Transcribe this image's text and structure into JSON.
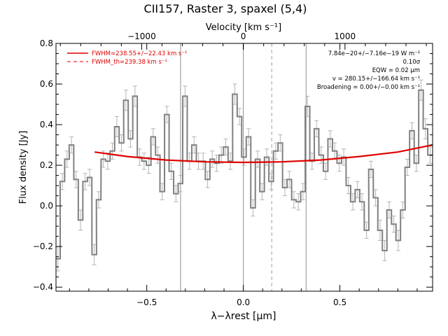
{
  "chart_data": {
    "type": "line",
    "title": "CII157, Raster 3, spaxel (5,4)",
    "xlabel": "λ−λrest [μm]",
    "ylabel": "Flux density [Jy]",
    "top_xlabel": "Velocity [km s⁻¹]",
    "xlim": [
      -0.97,
      0.98
    ],
    "ylim": [
      -0.42,
      0.8
    ],
    "x_ticks": [
      -0.5,
      0.0,
      0.5
    ],
    "x_tick_labels": [
      "−0.5",
      "0.0",
      "0.5"
    ],
    "y_ticks": [
      -0.4,
      -0.2,
      0.0,
      0.2,
      0.4,
      0.6,
      0.8
    ],
    "y_tick_labels": [
      "−0.4",
      "−0.2",
      "0.0",
      "0.2",
      "0.4",
      "0.6",
      "0.8"
    ],
    "top_ticks_km_s": [
      -1000,
      0,
      1000
    ],
    "top_tick_labels": [
      "−1000",
      "0",
      "1000"
    ],
    "km_s_per_um": 1900,
    "vlines_solid": [
      -0.325,
      0.0,
      0.325
    ],
    "vline_dashed": 0.147,
    "spectrum": {
      "name": "data",
      "color": "#808080",
      "step": 0.0235,
      "x": [
        -0.96,
        -0.937,
        -0.913,
        -0.89,
        -0.866,
        -0.843,
        -0.819,
        -0.796,
        -0.772,
        -0.749,
        -0.725,
        -0.702,
        -0.678,
        -0.655,
        -0.631,
        -0.608,
        -0.584,
        -0.561,
        -0.537,
        -0.514,
        -0.49,
        -0.467,
        -0.443,
        -0.42,
        -0.396,
        -0.373,
        -0.349,
        -0.326,
        -0.302,
        -0.279,
        -0.255,
        -0.232,
        -0.208,
        -0.185,
        -0.161,
        -0.138,
        -0.114,
        -0.091,
        -0.067,
        -0.044,
        -0.02,
        0.003,
        0.027,
        0.05,
        0.074,
        0.097,
        0.121,
        0.144,
        0.168,
        0.191,
        0.215,
        0.238,
        0.262,
        0.285,
        0.309,
        0.332,
        0.356,
        0.379,
        0.403,
        0.426,
        0.45,
        0.473,
        0.497,
        0.52,
        0.544,
        0.567,
        0.591,
        0.614,
        0.638,
        0.661,
        0.685,
        0.708,
        0.732,
        0.755,
        0.779,
        0.802,
        0.826,
        0.849,
        0.873,
        0.896,
        0.92,
        0.943,
        0.967
      ],
      "y": [
        -0.26,
        0.12,
        0.23,
        0.3,
        0.13,
        -0.07,
        0.12,
        0.14,
        -0.24,
        0.03,
        0.23,
        0.22,
        0.27,
        0.39,
        0.31,
        0.52,
        0.33,
        0.54,
        0.24,
        0.22,
        0.2,
        0.34,
        0.25,
        0.07,
        0.45,
        0.17,
        0.06,
        0.11,
        0.54,
        0.22,
        0.3,
        0.22,
        0.22,
        0.13,
        0.23,
        0.21,
        0.25,
        0.29,
        0.22,
        0.55,
        0.44,
        0.24,
        0.34,
        -0.01,
        0.23,
        0.07,
        0.24,
        0.12,
        0.27,
        0.31,
        0.09,
        0.13,
        0.03,
        0.02,
        0.07,
        0.49,
        0.22,
        0.38,
        0.25,
        0.17,
        0.33,
        0.27,
        0.21,
        0.24,
        0.1,
        0.02,
        0.08,
        0.02,
        -0.12,
        0.18,
        0.04,
        -0.12,
        -0.22,
        -0.02,
        -0.09,
        -0.17,
        -0.02,
        0.19,
        0.37,
        0.21,
        0.57,
        0.38,
        0.25
      ],
      "err": [
        0.06,
        0.04,
        0.04,
        0.04,
        0.04,
        0.05,
        0.04,
        0.04,
        0.05,
        0.04,
        0.04,
        0.04,
        0.04,
        0.05,
        0.04,
        0.05,
        0.04,
        0.05,
        0.04,
        0.04,
        0.04,
        0.04,
        0.04,
        0.04,
        0.04,
        0.04,
        0.04,
        0.04,
        0.05,
        0.04,
        0.04,
        0.04,
        0.04,
        0.04,
        0.04,
        0.04,
        0.04,
        0.04,
        0.04,
        0.05,
        0.04,
        0.04,
        0.04,
        0.04,
        0.04,
        0.04,
        0.04,
        0.04,
        0.04,
        0.04,
        0.04,
        0.04,
        0.04,
        0.04,
        0.04,
        0.05,
        0.04,
        0.04,
        0.04,
        0.04,
        0.04,
        0.04,
        0.04,
        0.04,
        0.04,
        0.04,
        0.04,
        0.04,
        0.04,
        0.04,
        0.04,
        0.05,
        0.05,
        0.04,
        0.04,
        0.05,
        0.04,
        0.04,
        0.04,
        0.04,
        0.05,
        0.05,
        0.04
      ]
    },
    "fit": {
      "name": "FWHM=238.55+/−22.43 km s⁻¹",
      "color": "#e00000",
      "x": [
        -0.77,
        -0.6,
        -0.4,
        -0.2,
        0.0,
        0.2,
        0.4,
        0.6,
        0.8,
        0.98
      ],
      "y": [
        0.265,
        0.243,
        0.226,
        0.217,
        0.214,
        0.217,
        0.226,
        0.243,
        0.265,
        0.3
      ]
    },
    "legend": {
      "placement": "top-left",
      "entries": [
        {
          "label": "FWHM=238.55+/−22.43 km s⁻¹",
          "style": "solid",
          "color": "#e00000"
        },
        {
          "label": "FWHM_th=239.38 km s⁻¹",
          "style": "dashed",
          "color": "#e00000"
        }
      ]
    },
    "annotations": [
      "7.84e−20+/−7.16e−19 W m⁻²",
      "0.10σ",
      "EQW = 0.02 μm",
      "v = 280.15+/−166.64 km s⁻¹",
      "Broadening = 0.00+/−0.00 km s⁻¹"
    ],
    "grid": false
  }
}
